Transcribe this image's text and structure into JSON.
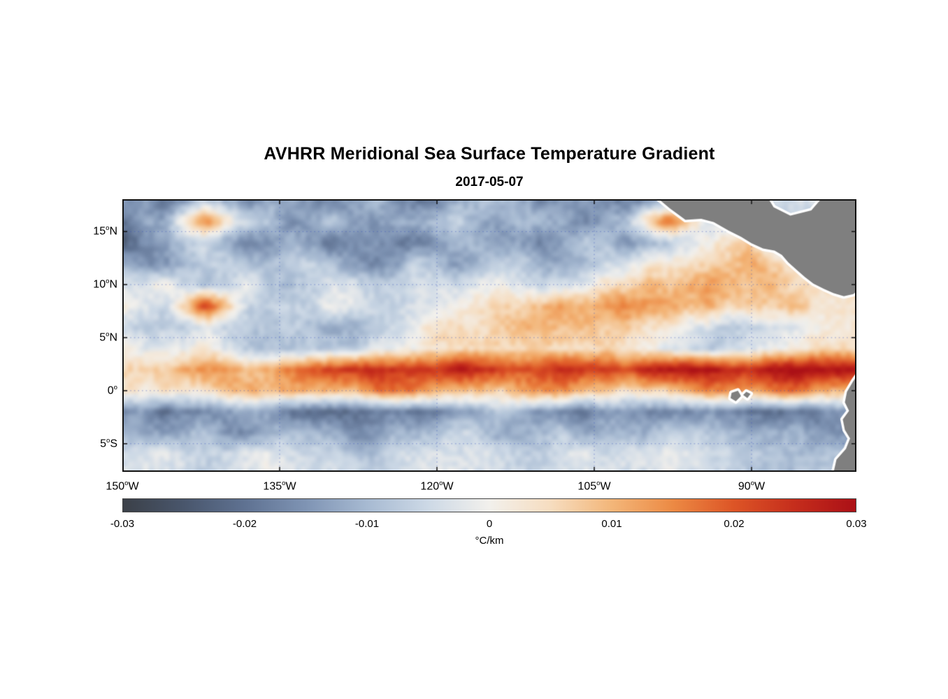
{
  "chart": {
    "title": "AVHRR Meridional Sea Surface Temperature Gradient",
    "subtitle": "2017-05-07",
    "colorbar_label": "°C/km",
    "y_ticks": [
      {
        "num": "15",
        "suffix": "N",
        "lat": 15
      },
      {
        "num": "10",
        "suffix": "N",
        "lat": 10
      },
      {
        "num": "5",
        "suffix": "N",
        "lat": 5
      },
      {
        "num": "0",
        "suffix": "",
        "lat": 0
      },
      {
        "num": "5",
        "suffix": "S",
        "lat": -5
      }
    ],
    "x_ticks": [
      {
        "num": "150",
        "suffix": "W",
        "lon": -150
      },
      {
        "num": "135",
        "suffix": "W",
        "lon": -135
      },
      {
        "num": "120",
        "suffix": "W",
        "lon": -120
      },
      {
        "num": "105",
        "suffix": "W",
        "lon": -105
      },
      {
        "num": "90",
        "suffix": "W",
        "lon": -90
      }
    ],
    "colorbar_ticks": [
      {
        "label": "-0.03",
        "value": -0.03
      },
      {
        "label": "-0.02",
        "value": -0.02
      },
      {
        "label": "-0.01",
        "value": -0.01
      },
      {
        "label": "0",
        "value": 0
      },
      {
        "label": "0.01",
        "value": 0.01
      },
      {
        "label": "0.02",
        "value": 0.02
      },
      {
        "label": "0.03",
        "value": 0.03
      }
    ]
  },
  "chart_data": {
    "type": "heatmap",
    "title": "AVHRR Meridional Sea Surface Temperature Gradient",
    "date": "2017-05-07",
    "units": "°C/km",
    "lon_range_deg": [
      -150,
      -80
    ],
    "lat_range_deg": [
      -7.7,
      18.1
    ],
    "x_tick_labels": [
      "150°W",
      "135°W",
      "120°W",
      "105°W",
      "90°W"
    ],
    "y_tick_labels": [
      "15°N",
      "10°N",
      "5°N",
      "0°",
      "5°S"
    ],
    "colorbar": {
      "min": -0.03,
      "max": 0.03,
      "tick_values": [
        -0.03,
        -0.02,
        -0.01,
        0,
        0.01,
        0.02,
        0.03
      ],
      "stops": [
        {
          "v": -0.03,
          "c": "#3b4048"
        },
        {
          "v": -0.025,
          "c": "#49566c"
        },
        {
          "v": -0.02,
          "c": "#5f7292"
        },
        {
          "v": -0.015,
          "c": "#7f94b4"
        },
        {
          "v": -0.01,
          "c": "#a7bad2"
        },
        {
          "v": -0.005,
          "c": "#cdd9e6"
        },
        {
          "v": 0,
          "c": "#f2f0ec"
        },
        {
          "v": 0.005,
          "c": "#f6ddc0"
        },
        {
          "v": 0.01,
          "c": "#f3b679"
        },
        {
          "v": 0.015,
          "c": "#ec8a44"
        },
        {
          "v": 0.02,
          "c": "#dd5526"
        },
        {
          "v": 0.025,
          "c": "#c52d1c"
        },
        {
          "v": 0.03,
          "c": "#ab1016"
        }
      ]
    },
    "gridlines": {
      "lats": [
        15,
        10,
        5,
        0,
        -5
      ],
      "lons": [
        -150,
        -135,
        -120,
        -105,
        -90
      ],
      "color": "#3a56c0",
      "style": "dotted"
    },
    "grid": {
      "lons": [
        -150,
        -146,
        -142,
        -138,
        -134,
        -130,
        -126,
        -122,
        -118,
        -114,
        -110,
        -106,
        -102,
        -98,
        -94,
        -90,
        -86,
        -82
      ],
      "lats": [
        18,
        16,
        14,
        12,
        10,
        8,
        6,
        4,
        2,
        0,
        -2,
        -4,
        -6
      ],
      "values": [
        [
          -0.012,
          -0.02,
          -0.008,
          -0.016,
          -0.01,
          -0.018,
          -0.008,
          -0.02,
          -0.014,
          -0.008,
          -0.018,
          -0.012,
          -0.02,
          -0.01,
          -0.006,
          -0.004,
          -0.004,
          -0.002
        ],
        [
          -0.018,
          -0.01,
          0.014,
          -0.006,
          -0.014,
          -0.008,
          -0.016,
          -0.01,
          -0.006,
          -0.014,
          -0.01,
          -0.016,
          -0.008,
          0.02,
          -0.004,
          -0.006,
          -0.004,
          -0.006
        ],
        [
          -0.022,
          -0.014,
          -0.006,
          -0.016,
          -0.01,
          -0.02,
          -0.014,
          -0.018,
          -0.008,
          -0.012,
          -0.018,
          -0.008,
          -0.014,
          -0.006,
          0.002,
          0.006,
          -0.008,
          -0.006
        ],
        [
          -0.01,
          -0.016,
          -0.006,
          -0.012,
          -0.004,
          -0.01,
          -0.016,
          -0.008,
          -0.014,
          -0.006,
          -0.012,
          -0.008,
          -0.004,
          0.004,
          0.008,
          0.01,
          0.004,
          -0.006
        ],
        [
          -0.006,
          0.002,
          -0.008,
          -0.002,
          -0.01,
          -0.004,
          -0.008,
          -0.002,
          -0.006,
          -0.002,
          -0.008,
          -0.002,
          0.006,
          0.01,
          0.012,
          0.01,
          0.006,
          0.002
        ],
        [
          0,
          -0.004,
          0.022,
          -0.004,
          -0.008,
          -0.002,
          -0.006,
          -0.002,
          0.002,
          0.006,
          0.01,
          0.012,
          0.014,
          0.012,
          0.01,
          0.006,
          0.008,
          0.004
        ],
        [
          -0.004,
          -0.008,
          -0.002,
          -0.01,
          -0.006,
          -0.012,
          -0.008,
          0.002,
          0.004,
          0.008,
          0.012,
          0.01,
          0.008,
          0.004,
          -0.004,
          -0.008,
          -0.002,
          0.004
        ],
        [
          0.002,
          -0.002,
          0.004,
          -0.006,
          -0.012,
          -0.008,
          -0.004,
          0.002,
          0.006,
          0.004,
          0.008,
          0.006,
          0.004,
          -0.002,
          -0.006,
          -0.004,
          0.002,
          0.006
        ],
        [
          0.006,
          0.008,
          0.012,
          0.01,
          0.016,
          0.024,
          0.027,
          0.022,
          0.028,
          0.024,
          0.02,
          0.026,
          0.022,
          0.027,
          0.029,
          0.026,
          0.03,
          0.028
        ],
        [
          0.002,
          0.004,
          0.006,
          0.01,
          0.012,
          0.008,
          0.014,
          0.018,
          0.01,
          0.006,
          0.016,
          0.01,
          0.004,
          0.008,
          0.014,
          0.01,
          0.016,
          0.012
        ],
        [
          -0.014,
          -0.018,
          -0.015,
          -0.012,
          -0.019,
          -0.021,
          -0.015,
          -0.018,
          -0.013,
          -0.009,
          -0.016,
          -0.019,
          -0.012,
          -0.017,
          -0.013,
          -0.018,
          -0.02,
          -0.015
        ],
        [
          -0.008,
          -0.012,
          -0.01,
          -0.015,
          -0.008,
          -0.013,
          -0.016,
          -0.009,
          -0.006,
          -0.012,
          -0.008,
          -0.011,
          -0.013,
          -0.008,
          -0.01,
          -0.013,
          -0.009,
          -0.014
        ],
        [
          -0.004,
          -0.002,
          -0.007,
          -0.004,
          -0.002,
          -0.006,
          -0.009,
          -0.004,
          -0.002,
          -0.005,
          -0.007,
          -0.002,
          -0.004,
          -0.002,
          -0.006,
          -0.009,
          -0.011,
          -0.007
        ]
      ]
    },
    "land": {
      "fill": "#7f7f7f",
      "coast_halo": "#ffffff",
      "polygons": [
        {
          "name": "central-america",
          "pts": [
            [
              -99.5,
              18.6
            ],
            [
              -97.8,
              17.2
            ],
            [
              -96.3,
              16.1
            ],
            [
              -94.8,
              16.2
            ],
            [
              -93.6,
              15.9
            ],
            [
              -92.2,
              15.1
            ],
            [
              -91.0,
              14.5
            ],
            [
              -90.0,
              13.9
            ],
            [
              -88.9,
              13.4
            ],
            [
              -87.8,
              13.2
            ],
            [
              -87.1,
              12.8
            ],
            [
              -86.5,
              12.1
            ],
            [
              -85.7,
              11.4
            ],
            [
              -84.9,
              10.7
            ],
            [
              -84.1,
              10.1
            ],
            [
              -83.1,
              9.6
            ],
            [
              -82.2,
              9.2
            ],
            [
              -81.2,
              8.9
            ],
            [
              -80.3,
              9.1
            ],
            [
              -79.8,
              9.5
            ],
            [
              -79.8,
              18.6
            ],
            [
              -82.9,
              18.6
            ],
            [
              -84.3,
              17.0
            ],
            [
              -86.3,
              16.5
            ],
            [
              -87.9,
              17.3
            ],
            [
              -88.7,
              18.6
            ]
          ]
        },
        {
          "name": "south-america",
          "pts": [
            [
              -79.8,
              1.6
            ],
            [
              -80.3,
              0.9
            ],
            [
              -80.9,
              -0.1
            ],
            [
              -81.1,
              -1.1
            ],
            [
              -80.7,
              -1.9
            ],
            [
              -81.3,
              -2.7
            ],
            [
              -81.1,
              -3.7
            ],
            [
              -80.6,
              -4.5
            ],
            [
              -81.0,
              -5.5
            ],
            [
              -81.9,
              -6.5
            ],
            [
              -82.2,
              -7.8
            ],
            [
              -79.8,
              -7.8
            ]
          ]
        },
        {
          "name": "galapagos-west",
          "pts": [
            [
              -91.9,
              -0.2
            ],
            [
              -91.3,
              0.0
            ],
            [
              -91.0,
              -0.5
            ],
            [
              -91.5,
              -1.0
            ],
            [
              -92.0,
              -0.7
            ]
          ]
        },
        {
          "name": "galapagos-east",
          "pts": [
            [
              -90.5,
              -0.1
            ],
            [
              -90.1,
              -0.3
            ],
            [
              -90.4,
              -0.7
            ],
            [
              -90.8,
              -0.4
            ]
          ]
        }
      ]
    }
  }
}
